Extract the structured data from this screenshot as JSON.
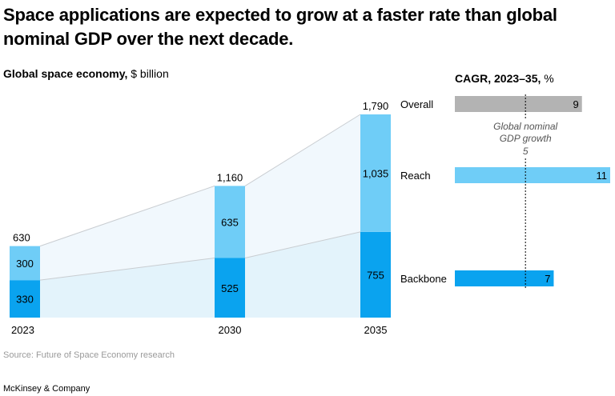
{
  "headline": "Space applications are expected to grow at a faster rate than global nominal GDP over the next decade.",
  "left_title": "Global space economy,",
  "left_unit": "$ billion",
  "right_title": "CAGR, 2023–35,",
  "right_unit": "%",
  "reference_label_line1": "Global nominal",
  "reference_label_line2": "GDP growth",
  "source": "Source: Future of Space Economy research",
  "brand": "McKinsey & Company",
  "colors": {
    "backbone": "#0aa3ef",
    "reach": "#6fcdf7",
    "overall": "#b3b3b3",
    "backbone_band": "#e3f3fb",
    "reach_band": "#f1f8fd"
  },
  "chart_data": [
    {
      "type": "bar",
      "stacked": true,
      "categories": [
        "2023",
        "2030",
        "2035"
      ],
      "series": [
        {
          "name": "Backbone",
          "values": [
            330,
            525,
            755
          ]
        },
        {
          "name": "Reach",
          "values": [
            300,
            635,
            1035
          ]
        }
      ],
      "totals": [
        630,
        1160,
        1790
      ],
      "ylim": [
        0,
        1790
      ]
    },
    {
      "type": "bar",
      "orientation": "horizontal",
      "title": "CAGR, 2023–35, %",
      "categories": [
        "Overall",
        "Reach",
        "Backbone"
      ],
      "values": [
        9,
        11,
        7
      ],
      "reference_line": {
        "label": "Global nominal GDP growth",
        "value": 5
      },
      "xlim": [
        0,
        11
      ]
    }
  ]
}
